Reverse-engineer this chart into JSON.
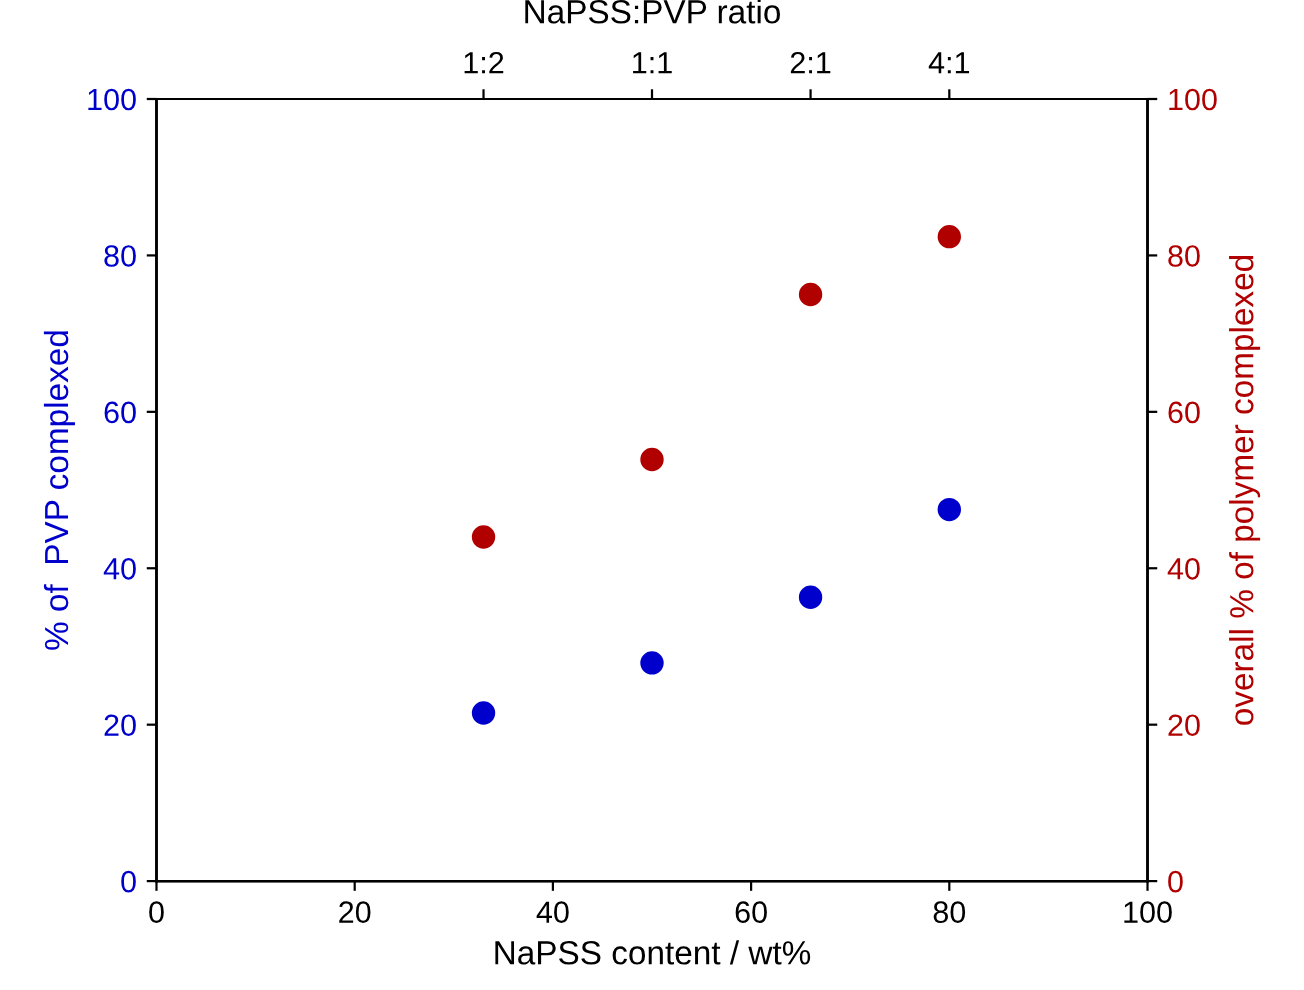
{
  "chart_data": {
    "type": "scatter",
    "xlabel": "NaPSS content / wt%",
    "ylabel": "% of  PVP complexed",
    "y2label": "overall % of polymer complexed",
    "x2label": "NaPSS:PVP ratio",
    "x": [
      33,
      50,
      66,
      80
    ],
    "series": [
      {
        "color": "#0000cc",
        "values": [
          21.5,
          27.9,
          36.3,
          47.5
        ]
      },
      {
        "color": "#b00000",
        "values": [
          44.0,
          53.9,
          75.0,
          82.4
        ],
        "axis": "y2"
      }
    ],
    "xlim": [
      0,
      100
    ],
    "xticks": [
      0,
      20,
      40,
      60,
      80,
      100
    ],
    "ylim": [
      0,
      100
    ],
    "yticks": [
      0,
      20,
      40,
      60,
      80,
      100
    ],
    "y2lim": [
      0,
      100
    ],
    "y2ticks": [
      0,
      20,
      40,
      60,
      80,
      100
    ],
    "annotations": [
      "1:2",
      "1:1",
      "2:1",
      "4:1"
    ],
    "marker": "circle",
    "grid": false,
    "legend": false
  }
}
